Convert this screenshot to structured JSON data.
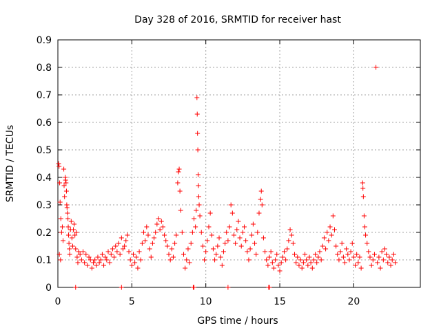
{
  "chart_data": {
    "type": "scatter",
    "title": "Day 328 of 2016, SRMTID for receiver hast",
    "xlabel": "GPS time / hours",
    "ylabel": "SRMTID / TECUs",
    "xlim": [
      0,
      24.5
    ],
    "ylim": [
      0,
      0.9
    ],
    "xticks": [
      0,
      5,
      10,
      15,
      20
    ],
    "xtick_labels": [
      "0",
      "5",
      "10",
      "15",
      "20"
    ],
    "yticks": [
      0,
      0.1,
      0.2,
      0.3,
      0.4,
      0.5,
      0.6,
      0.7,
      0.8,
      0.9
    ],
    "ytick_labels": [
      "0",
      "0.1",
      "0.2",
      "0.3",
      "0.4",
      "0.5",
      "0.6",
      "0.7",
      "0.8",
      "0.9"
    ],
    "grid": true,
    "marker": "+",
    "color": "#ff0000",
    "series": [
      {
        "name": "SRMTID",
        "points": [
          [
            0.05,
            0.45
          ],
          [
            0.08,
            0.44
          ],
          [
            0.12,
            0.38
          ],
          [
            0.15,
            0.31
          ],
          [
            0.2,
            0.25
          ],
          [
            0.25,
            0.2
          ],
          [
            0.1,
            0.12
          ],
          [
            0.18,
            0.1
          ],
          [
            0.3,
            0.22
          ],
          [
            0.35,
            0.17
          ],
          [
            0.4,
            0.43
          ],
          [
            0.42,
            0.37
          ],
          [
            0.45,
            0.33
          ],
          [
            0.5,
            0.4
          ],
          [
            0.52,
            0.39
          ],
          [
            0.55,
            0.38
          ],
          [
            0.58,
            0.35
          ],
          [
            0.6,
            0.3
          ],
          [
            0.62,
            0.29
          ],
          [
            0.65,
            0.27
          ],
          [
            0.68,
            0.25
          ],
          [
            0.7,
            0.22
          ],
          [
            0.72,
            0.19
          ],
          [
            0.75,
            0.16
          ],
          [
            0.78,
            0.14
          ],
          [
            0.8,
            0.12
          ],
          [
            0.85,
            0.21
          ],
          [
            0.9,
            0.24
          ],
          [
            0.95,
            0.18
          ],
          [
            1.0,
            0.15
          ],
          [
            1.05,
            0.21
          ],
          [
            1.1,
            0.23
          ],
          [
            1.15,
            0.19
          ],
          [
            1.2,
            0.14
          ],
          [
            1.25,
            0.2
          ],
          [
            1.3,
            0.11
          ],
          [
            1.35,
            0.09
          ],
          [
            1.4,
            0.13
          ],
          [
            1.5,
            0.12
          ],
          [
            1.6,
            0.1
          ],
          [
            1.7,
            0.13
          ],
          [
            1.8,
            0.09
          ],
          [
            1.9,
            0.12
          ],
          [
            2.0,
            0.08
          ],
          [
            2.1,
            0.11
          ],
          [
            2.2,
            0.1
          ],
          [
            2.3,
            0.07
          ],
          [
            2.4,
            0.09
          ],
          [
            2.5,
            0.1
          ],
          [
            2.6,
            0.08
          ],
          [
            2.7,
            0.11
          ],
          [
            2.8,
            0.09
          ],
          [
            2.9,
            0.1
          ],
          [
            3.0,
            0.12
          ],
          [
            3.1,
            0.08
          ],
          [
            3.2,
            0.11
          ],
          [
            3.3,
            0.1
          ],
          [
            3.4,
            0.13
          ],
          [
            3.5,
            0.09
          ],
          [
            3.6,
            0.12
          ],
          [
            3.7,
            0.14
          ],
          [
            3.8,
            0.11
          ],
          [
            3.9,
            0.15
          ],
          [
            4.0,
            0.13
          ],
          [
            4.1,
            0.16
          ],
          [
            4.2,
            0.12
          ],
          [
            4.3,
            0.18
          ],
          [
            4.4,
            0.14
          ],
          [
            4.5,
            0.15
          ],
          [
            4.6,
            0.17
          ],
          [
            4.7,
            0.19
          ],
          [
            4.8,
            0.13
          ],
          [
            4.9,
            0.1
          ],
          [
            5.0,
            0.08
          ],
          [
            5.1,
            0.12
          ],
          [
            5.2,
            0.09
          ],
          [
            5.3,
            0.11
          ],
          [
            5.4,
            0.07
          ],
          [
            5.5,
            0.13
          ],
          [
            5.6,
            0.1
          ],
          [
            5.7,
            0.16
          ],
          [
            5.8,
            0.2
          ],
          [
            5.9,
            0.17
          ],
          [
            6.0,
            0.22
          ],
          [
            6.1,
            0.19
          ],
          [
            6.2,
            0.14
          ],
          [
            6.3,
            0.11
          ],
          [
            6.4,
            0.16
          ],
          [
            6.5,
            0.18
          ],
          [
            6.6,
            0.2
          ],
          [
            6.7,
            0.23
          ],
          [
            6.8,
            0.25
          ],
          [
            6.9,
            0.21
          ],
          [
            7.0,
            0.24
          ],
          [
            7.1,
            0.22
          ],
          [
            7.2,
            0.19
          ],
          [
            7.3,
            0.17
          ],
          [
            7.4,
            0.15
          ],
          [
            7.5,
            0.12
          ],
          [
            7.6,
            0.1
          ],
          [
            7.7,
            0.14
          ],
          [
            7.8,
            0.11
          ],
          [
            7.9,
            0.16
          ],
          [
            8.0,
            0.19
          ],
          [
            8.1,
            0.38
          ],
          [
            8.15,
            0.42
          ],
          [
            8.2,
            0.43
          ],
          [
            8.25,
            0.35
          ],
          [
            8.3,
            0.28
          ],
          [
            8.4,
            0.2
          ],
          [
            8.5,
            0.12
          ],
          [
            8.6,
            0.07
          ],
          [
            8.7,
            0.1
          ],
          [
            8.8,
            0.14
          ],
          [
            8.9,
            0.09
          ],
          [
            9.0,
            0.16
          ],
          [
            9.1,
            0.2
          ],
          [
            9.2,
            0.25
          ],
          [
            9.3,
            0.22
          ],
          [
            9.35,
            0.28
          ],
          [
            9.4,
            0.69
          ],
          [
            9.42,
            0.63
          ],
          [
            9.44,
            0.56
          ],
          [
            9.46,
            0.5
          ],
          [
            9.48,
            0.41
          ],
          [
            9.5,
            0.37
          ],
          [
            9.52,
            0.33
          ],
          [
            9.55,
            0.3
          ],
          [
            9.6,
            0.26
          ],
          [
            9.7,
            0.2
          ],
          [
            9.8,
            0.15
          ],
          [
            9.9,
            0.1
          ],
          [
            10.0,
            0.13
          ],
          [
            10.1,
            0.17
          ],
          [
            10.2,
            0.22
          ],
          [
            10.3,
            0.27
          ],
          [
            10.4,
            0.19
          ],
          [
            10.5,
            0.14
          ],
          [
            10.6,
            0.1
          ],
          [
            10.7,
            0.12
          ],
          [
            10.8,
            0.15
          ],
          [
            10.9,
            0.18
          ],
          [
            11.0,
            0.11
          ],
          [
            11.1,
            0.08
          ],
          [
            11.2,
            0.13
          ],
          [
            11.3,
            0.16
          ],
          [
            11.4,
            0.2
          ],
          [
            11.5,
            0.17
          ],
          [
            11.6,
            0.22
          ],
          [
            11.7,
            0.3
          ],
          [
            11.8,
            0.27
          ],
          [
            11.9,
            0.19
          ],
          [
            12.0,
            0.16
          ],
          [
            12.1,
            0.21
          ],
          [
            12.2,
            0.24
          ],
          [
            12.3,
            0.18
          ],
          [
            12.4,
            0.15
          ],
          [
            12.5,
            0.2
          ],
          [
            12.6,
            0.22
          ],
          [
            12.7,
            0.17
          ],
          [
            12.8,
            0.13
          ],
          [
            12.9,
            0.1
          ],
          [
            13.0,
            0.14
          ],
          [
            13.1,
            0.19
          ],
          [
            13.2,
            0.23
          ],
          [
            13.3,
            0.16
          ],
          [
            13.4,
            0.12
          ],
          [
            13.5,
            0.2
          ],
          [
            13.6,
            0.27
          ],
          [
            13.7,
            0.32
          ],
          [
            13.75,
            0.35
          ],
          [
            13.8,
            0.3
          ],
          [
            13.9,
            0.18
          ],
          [
            14.0,
            0.13
          ],
          [
            14.1,
            0.1
          ],
          [
            14.2,
            0.08
          ],
          [
            14.3,
            0.11
          ],
          [
            14.4,
            0.13
          ],
          [
            14.5,
            0.09
          ],
          [
            14.6,
            0.07
          ],
          [
            14.7,
            0.1
          ],
          [
            14.8,
            0.12
          ],
          [
            14.9,
            0.08
          ],
          [
            15.0,
            0.06
          ],
          [
            15.1,
            0.09
          ],
          [
            15.2,
            0.11
          ],
          [
            15.3,
            0.13
          ],
          [
            15.4,
            0.1
          ],
          [
            15.5,
            0.14
          ],
          [
            15.6,
            0.17
          ],
          [
            15.7,
            0.21
          ],
          [
            15.8,
            0.19
          ],
          [
            15.9,
            0.16
          ],
          [
            16.0,
            0.12
          ],
          [
            16.1,
            0.09
          ],
          [
            16.2,
            0.11
          ],
          [
            16.3,
            0.08
          ],
          [
            16.4,
            0.1
          ],
          [
            16.5,
            0.07
          ],
          [
            16.6,
            0.09
          ],
          [
            16.7,
            0.12
          ],
          [
            16.8,
            0.1
          ],
          [
            16.9,
            0.08
          ],
          [
            17.0,
            0.11
          ],
          [
            17.1,
            0.09
          ],
          [
            17.2,
            0.07
          ],
          [
            17.3,
            0.1
          ],
          [
            17.4,
            0.12
          ],
          [
            17.5,
            0.09
          ],
          [
            17.6,
            0.11
          ],
          [
            17.7,
            0.13
          ],
          [
            17.8,
            0.1
          ],
          [
            17.9,
            0.15
          ],
          [
            18.0,
            0.18
          ],
          [
            18.1,
            0.14
          ],
          [
            18.2,
            0.2
          ],
          [
            18.3,
            0.17
          ],
          [
            18.4,
            0.22
          ],
          [
            18.5,
            0.19
          ],
          [
            18.6,
            0.26
          ],
          [
            18.7,
            0.21
          ],
          [
            18.8,
            0.15
          ],
          [
            18.9,
            0.12
          ],
          [
            19.0,
            0.1
          ],
          [
            19.1,
            0.13
          ],
          [
            19.2,
            0.16
          ],
          [
            19.3,
            0.11
          ],
          [
            19.4,
            0.09
          ],
          [
            19.5,
            0.14
          ],
          [
            19.6,
            0.12
          ],
          [
            19.7,
            0.1
          ],
          [
            19.8,
            0.13
          ],
          [
            19.9,
            0.16
          ],
          [
            20.0,
            0.11
          ],
          [
            20.1,
            0.08
          ],
          [
            20.2,
            0.12
          ],
          [
            20.3,
            0.09
          ],
          [
            20.4,
            0.11
          ],
          [
            20.5,
            0.07
          ],
          [
            20.6,
            0.38
          ],
          [
            20.62,
            0.36
          ],
          [
            20.65,
            0.33
          ],
          [
            20.7,
            0.26
          ],
          [
            20.75,
            0.22
          ],
          [
            20.8,
            0.19
          ],
          [
            20.9,
            0.16
          ],
          [
            21.0,
            0.13
          ],
          [
            21.1,
            0.11
          ],
          [
            21.2,
            0.08
          ],
          [
            21.3,
            0.1
          ],
          [
            21.4,
            0.12
          ],
          [
            21.5,
            0.8
          ],
          [
            21.6,
            0.09
          ],
          [
            21.7,
            0.11
          ],
          [
            21.8,
            0.07
          ],
          [
            21.9,
            0.13
          ],
          [
            22.0,
            0.1
          ],
          [
            22.1,
            0.14
          ],
          [
            22.2,
            0.12
          ],
          [
            22.3,
            0.09
          ],
          [
            22.4,
            0.11
          ],
          [
            22.5,
            0.08
          ],
          [
            22.6,
            0.1
          ],
          [
            22.7,
            0.12
          ],
          [
            22.8,
            0.09
          ],
          [
            1.2,
            0.0
          ],
          [
            4.3,
            0.0
          ],
          [
            9.15,
            0.0
          ],
          [
            9.2,
            0.0
          ],
          [
            11.5,
            0.0
          ],
          [
            14.25,
            0.0
          ],
          [
            14.3,
            0.0
          ]
        ]
      }
    ]
  }
}
